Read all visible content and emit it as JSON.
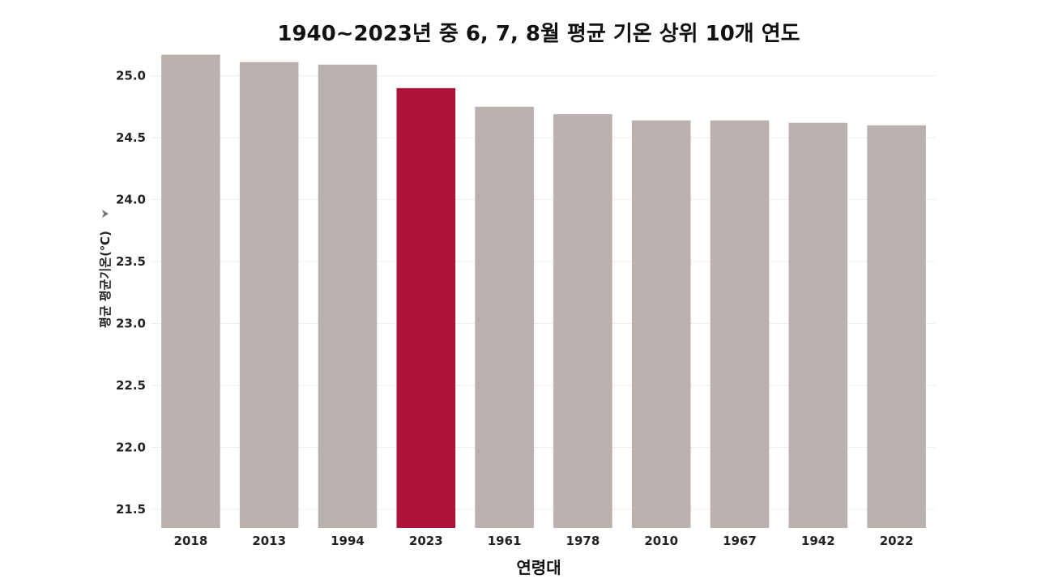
{
  "chart_data": {
    "type": "bar",
    "title": "1940~2023년 중 6, 7, 8월 평균 기온 상위 10개 연도",
    "xlabel": "연령대",
    "ylabel": "평균 평균기온(℃)",
    "categories": [
      "2018",
      "2013",
      "1994",
      "2023",
      "1961",
      "1978",
      "2010",
      "1967",
      "1942",
      "2022"
    ],
    "values": [
      25.17,
      25.11,
      25.09,
      24.9,
      24.75,
      24.69,
      24.64,
      24.64,
      24.62,
      24.6
    ],
    "ylim": [
      21.35,
      25.35
    ],
    "yticks": [
      "21.5",
      "22.0",
      "22.5",
      "23.0",
      "23.5",
      "24.0",
      "24.5",
      "25.0"
    ],
    "highlight_category": "2023",
    "colors": {
      "default": "#b9b1ae",
      "highlight": "#ad1239"
    },
    "grid": true,
    "legend": "none"
  }
}
